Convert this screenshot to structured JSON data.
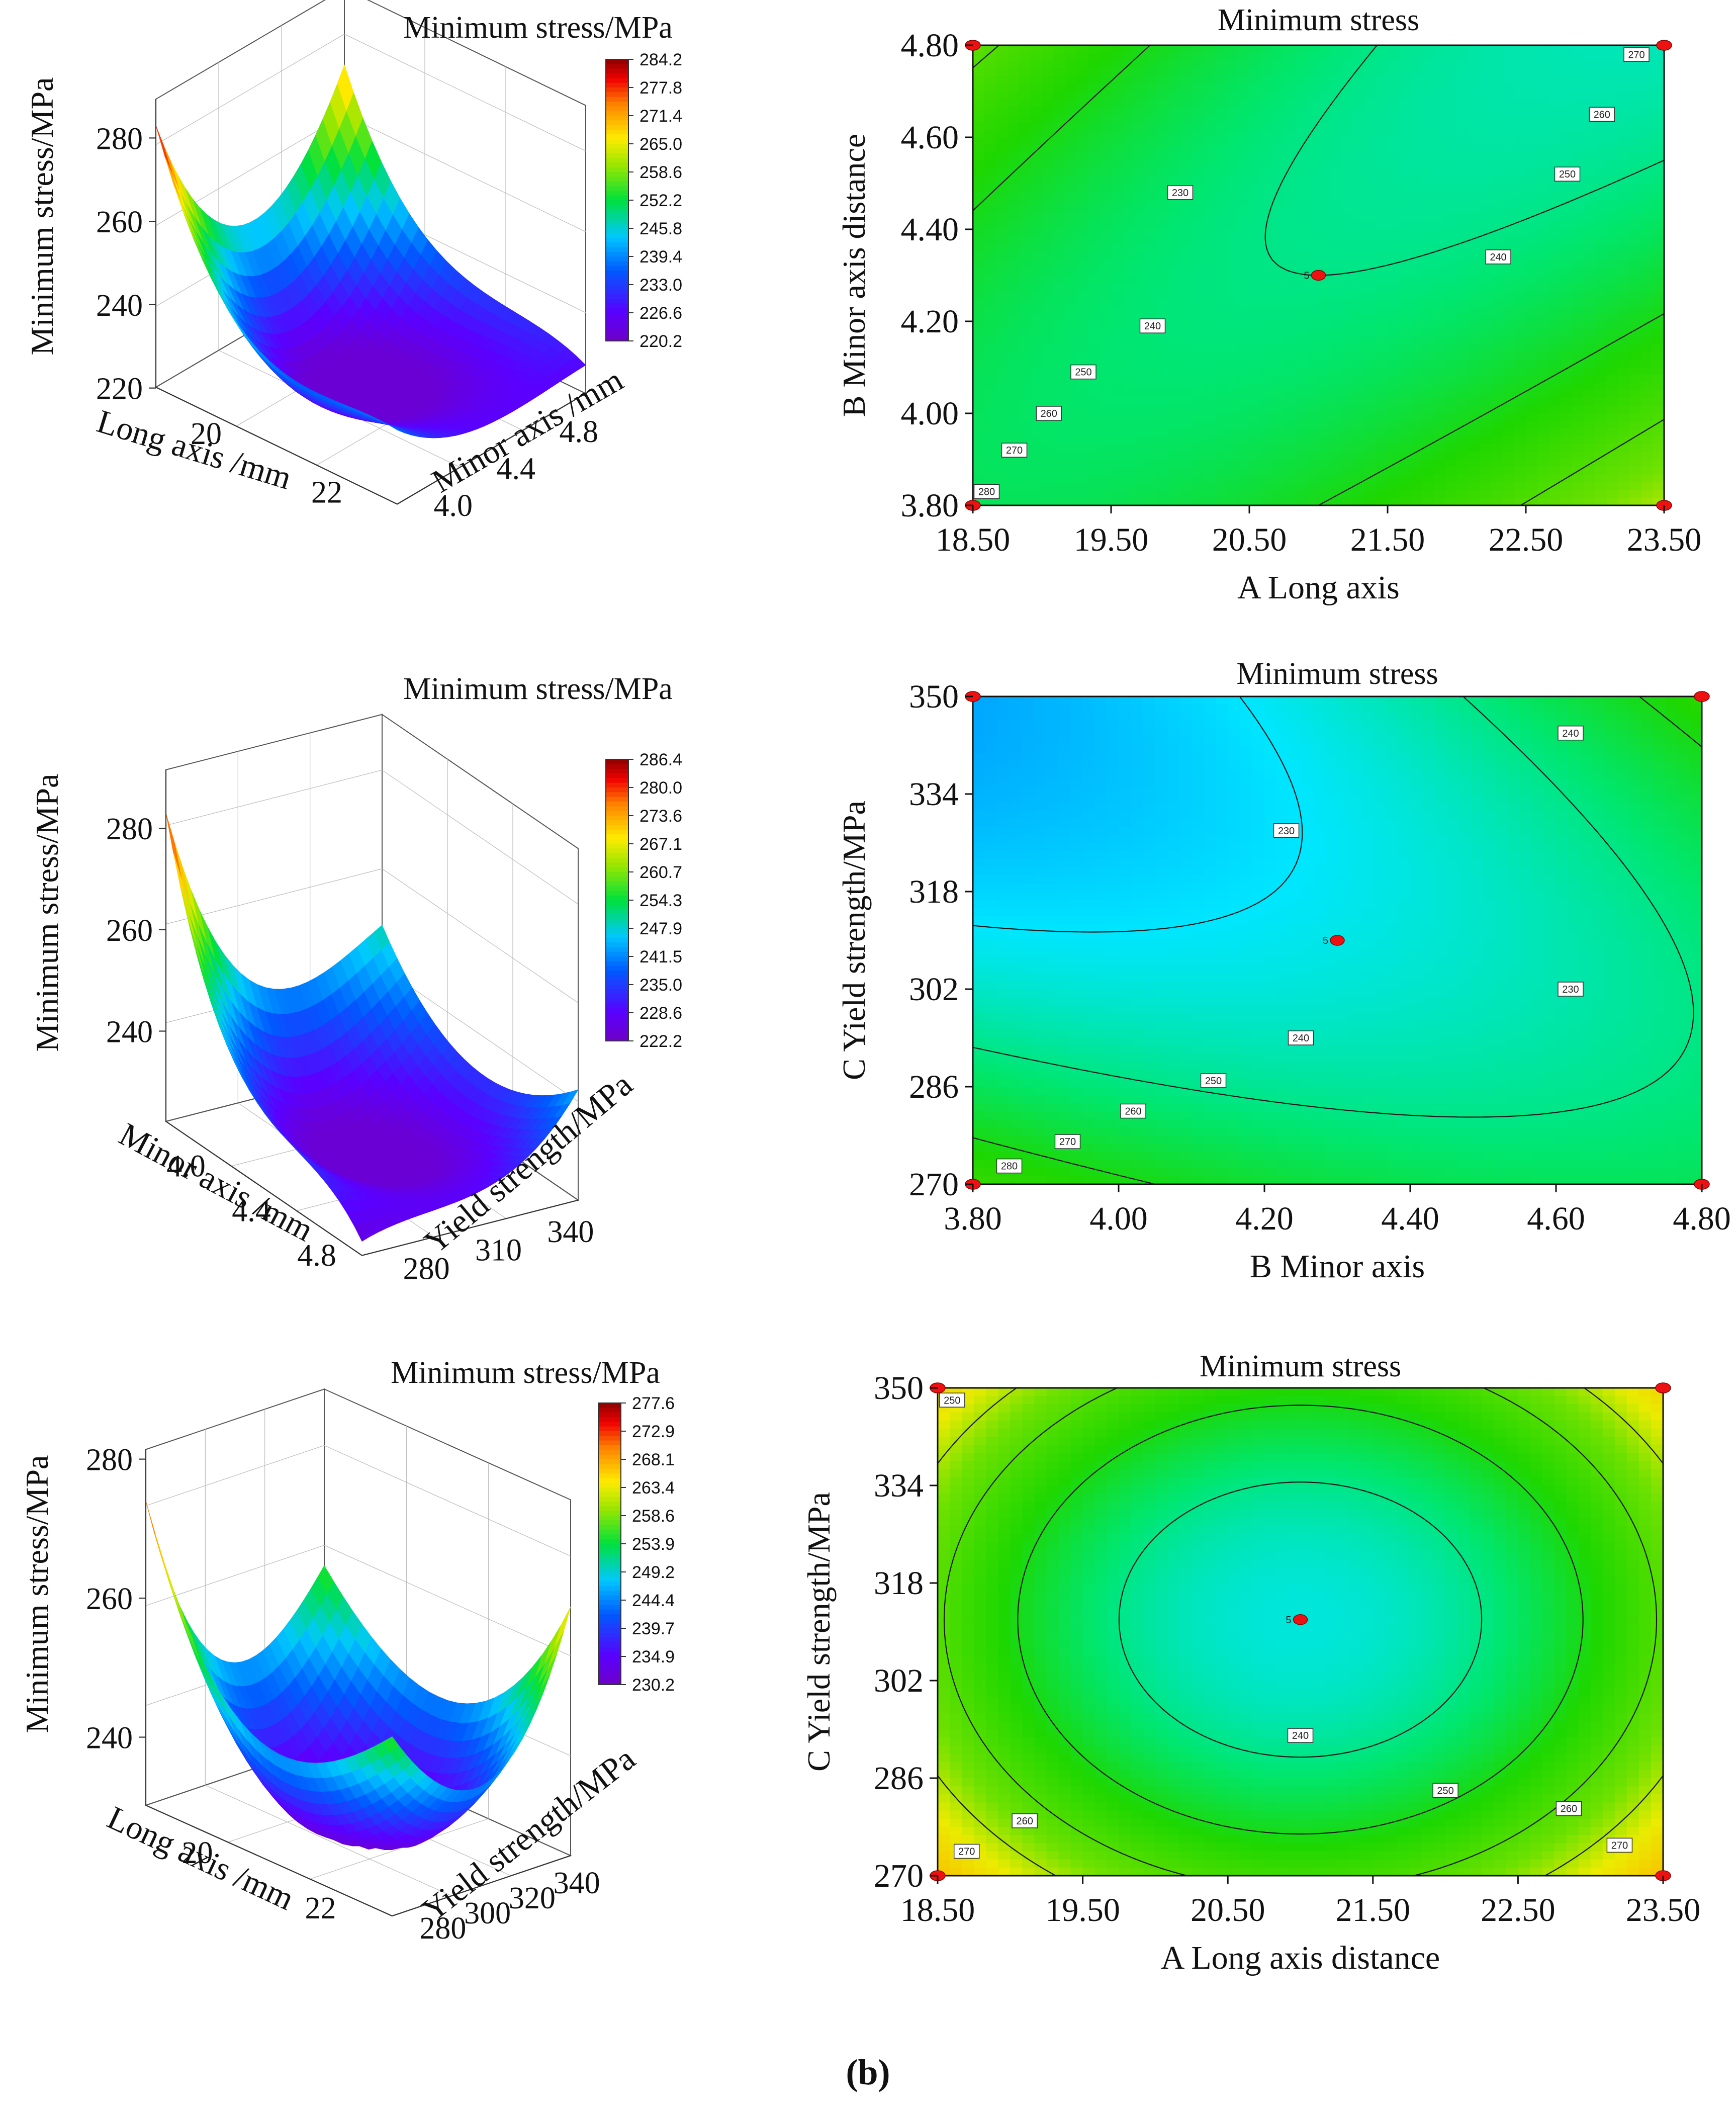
{
  "figure": {
    "caption": "(b)"
  },
  "chart_data": [
    {
      "id": "p1",
      "type": "surface3d",
      "title": "Minimum stress/MPa",
      "zlabel": "Minimum stress/MPa",
      "xlabel": "Long axis /mm",
      "ylabel": "Minor axis /mm",
      "z_ticks": [
        "280",
        "260",
        "240",
        "220"
      ],
      "x_ticks": [
        "20",
        "22"
      ],
      "y_ticks": [
        "4.0",
        "4.4",
        "4.8"
      ],
      "colorbar": [
        "284.2",
        "277.8",
        "271.4",
        "265.0",
        "258.6",
        "252.2",
        "245.8",
        "239.4",
        "233.0",
        "226.6",
        "220.2"
      ],
      "zlim": [
        220.2,
        284.2
      ],
      "corners": [
        283,
        238,
        227,
        271
      ]
    },
    {
      "id": "c1",
      "type": "contour",
      "title": "Minimum stress",
      "xlabel": "A  Long axis",
      "ylabel": "B Minor axis distance",
      "x_ticks": [
        "18.50",
        "19.50",
        "20.50",
        "21.50",
        "22.50",
        "23.50"
      ],
      "y_ticks": [
        "3.80",
        "4.00",
        "4.20",
        "4.40",
        "4.60",
        "4.80"
      ],
      "xlim": [
        18.5,
        23.5
      ],
      "ylim": [
        3.8,
        4.8
      ],
      "model": {
        "a": 240,
        "x0": 21,
        "y0": 4.3,
        "A": 0,
        "B": -4,
        "D": 7,
        "E": 6,
        "C": -13
      },
      "levels": [
        230,
        240,
        250,
        260,
        270,
        280
      ],
      "labels": [
        {
          "text": "230",
          "x": 20.0,
          "y": 4.48
        },
        {
          "text": "240",
          "x": 22.3,
          "y": 4.34
        },
        {
          "text": "250",
          "x": 22.8,
          "y": 4.52
        },
        {
          "text": "260",
          "x": 23.05,
          "y": 4.65
        },
        {
          "text": "270",
          "x": 23.3,
          "y": 4.78
        },
        {
          "text": "240",
          "x": 19.8,
          "y": 4.19
        },
        {
          "text": "250",
          "x": 19.3,
          "y": 4.09
        },
        {
          "text": "260",
          "x": 19.05,
          "y": 4.0
        },
        {
          "text": "270",
          "x": 18.8,
          "y": 3.92
        },
        {
          "text": "280",
          "x": 18.6,
          "y": 3.83
        }
      ],
      "center_label": "5"
    },
    {
      "id": "p2",
      "type": "surface3d",
      "title": "Minimum stress/MPa",
      "zlabel": "Minimum stress/MPa",
      "xlabel": "Minor axis /mm",
      "ylabel": "Yield strength/MPa",
      "z_ticks": [
        "280",
        "260",
        "240"
      ],
      "x_ticks": [
        "4.0",
        "4.4",
        "4.8"
      ],
      "y_ticks": [
        "280",
        "310",
        "340"
      ],
      "colorbar": [
        "286.4",
        "280.0",
        "273.6",
        "267.1",
        "260.7",
        "254.3",
        "247.9",
        "241.5",
        "235.0",
        "228.6",
        "222.2"
      ],
      "zlim": [
        222.2,
        286.4
      ],
      "corners": [
        283,
        225,
        244,
        250
      ]
    },
    {
      "id": "c2",
      "type": "contour",
      "title": "Minimum stress",
      "xlabel": "B Minor axis",
      "ylabel": "C  Yield strength/MPa",
      "x_ticks": [
        "3.80",
        "4.00",
        "4.20",
        "4.40",
        "4.60",
        "4.80"
      ],
      "y_ticks": [
        "270",
        "286",
        "302",
        "318",
        "334",
        "350"
      ],
      "xlim": [
        3.8,
        4.8
      ],
      "ylim": [
        270,
        350
      ],
      "model": {
        "a": 232,
        "x0": 4.3,
        "y0": 310,
        "A": 5,
        "B": -6,
        "D": 4,
        "E": 8,
        "C": 11
      },
      "levels": [
        230,
        240,
        250,
        260,
        270,
        280
      ],
      "labels": [
        {
          "text": "230",
          "x": 4.23,
          "y": 328
        },
        {
          "text": "230",
          "x": 4.62,
          "y": 302
        },
        {
          "text": "240",
          "x": 4.62,
          "y": 344
        },
        {
          "text": "240",
          "x": 4.25,
          "y": 294
        },
        {
          "text": "250",
          "x": 4.13,
          "y": 287
        },
        {
          "text": "260",
          "x": 4.02,
          "y": 282
        },
        {
          "text": "270",
          "x": 3.93,
          "y": 277
        },
        {
          "text": "280",
          "x": 3.85,
          "y": 273
        }
      ],
      "center_label": "5"
    },
    {
      "id": "p3",
      "type": "surface3d",
      "title": "Minimum stress/MPa",
      "zlabel": "Minimum stress/MPa",
      "xlabel": "Long axis /mm",
      "ylabel": "Yield strength/MPa",
      "z_ticks": [
        "280",
        "260",
        "240"
      ],
      "x_ticks": [
        "20",
        "22"
      ],
      "y_ticks": [
        "280",
        "300",
        "320",
        "340"
      ],
      "colorbar": [
        "277.6",
        "272.9",
        "268.1",
        "263.4",
        "258.6",
        "253.9",
        "249.2",
        "244.4",
        "239.7",
        "234.9",
        "230.2"
      ],
      "zlim": [
        230.2,
        277.6
      ],
      "corners": [
        274,
        256,
        266,
        256
      ]
    },
    {
      "id": "c3",
      "type": "contour",
      "title": "Minimum stress",
      "xlabel": "A Long axis distance",
      "ylabel": "C  Yield strength/MPa",
      "x_ticks": [
        "18.50",
        "19.50",
        "20.50",
        "21.50",
        "22.50",
        "23.50"
      ],
      "y_ticks": [
        "270",
        "286",
        "302",
        "318",
        "334",
        "350"
      ],
      "xlim": [
        18.5,
        23.5
      ],
      "ylim": [
        270,
        350
      ],
      "model": {
        "a": 233,
        "x0": 21,
        "y0": 312,
        "A": 0,
        "B": 0,
        "D": 28,
        "E": 22,
        "C": 0
      },
      "levels": [
        240,
        250,
        260,
        270
      ],
      "labels": [
        {
          "text": "240",
          "x": 21.0,
          "y": 293
        },
        {
          "text": "250",
          "x": 22.0,
          "y": 284
        },
        {
          "text": "260",
          "x": 22.85,
          "y": 281
        },
        {
          "text": "270",
          "x": 23.2,
          "y": 275
        },
        {
          "text": "260",
          "x": 19.1,
          "y": 279
        },
        {
          "text": "270",
          "x": 18.7,
          "y": 274
        },
        {
          "text": "250",
          "x": 18.6,
          "y": 348
        }
      ],
      "center_label": "5"
    }
  ]
}
